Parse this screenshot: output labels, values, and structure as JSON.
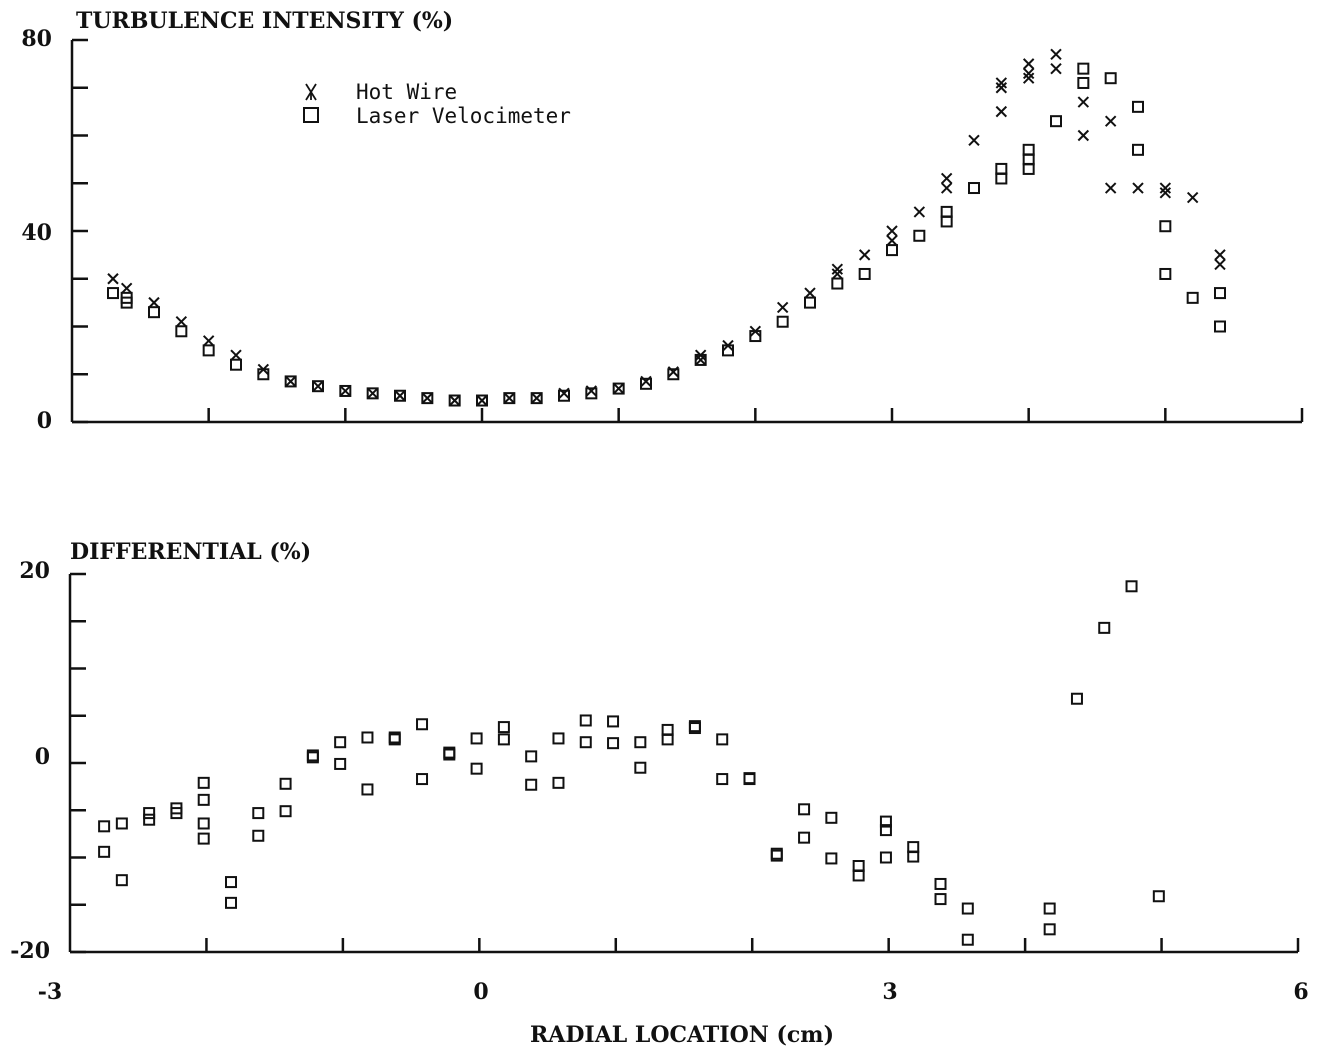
{
  "chart_data": [
    {
      "type": "scatter",
      "title": "TURBULENCE INTENSITY (%)",
      "xlim": [
        -3,
        6
      ],
      "ylim": [
        0,
        80
      ],
      "yticks": [
        "0",
        "40",
        "80"
      ],
      "legend": [
        {
          "symbol": "X",
          "label": "Hot Wire"
        },
        {
          "symbol": "□",
          "label": "Laser Velocimeter"
        }
      ],
      "legend_position": "top-left",
      "series": [
        {
          "name": "Hot Wire",
          "marker": "x",
          "x": [
            -2.7,
            -2.6,
            -2.4,
            -2.2,
            -2.0,
            -1.8,
            -1.6,
            -1.4,
            -1.2,
            -1.0,
            -0.8,
            -0.6,
            -0.4,
            -0.2,
            0.0,
            0.2,
            0.4,
            0.6,
            0.8,
            1.0,
            1.2,
            1.4,
            1.6,
            1.6,
            1.8,
            2.0,
            2.2,
            2.4,
            2.6,
            2.6,
            2.8,
            3.0,
            3.0,
            3.2,
            3.4,
            3.4,
            3.6,
            3.8,
            3.8,
            3.8,
            4.0,
            4.0,
            4.0,
            4.2,
            4.2,
            4.4,
            4.4,
            4.6,
            4.6,
            4.8,
            5.0,
            5.0,
            5.2,
            5.4,
            5.4
          ],
          "y": [
            30,
            28,
            25,
            21,
            17,
            14,
            11,
            8.5,
            7.5,
            6.5,
            6,
            5.5,
            5,
            4.5,
            4.5,
            5,
            5,
            6,
            6.5,
            7,
            8.5,
            10.5,
            13,
            14,
            16,
            19,
            24,
            27,
            31,
            32,
            35,
            38,
            40,
            44,
            49,
            51,
            59,
            65,
            70,
            71,
            72,
            73,
            75,
            74,
            77,
            60,
            67,
            63,
            49,
            49,
            48,
            49,
            47,
            33,
            35
          ]
        },
        {
          "name": "Laser Velocimeter",
          "marker": "square",
          "x": [
            -2.7,
            -2.6,
            -2.6,
            -2.4,
            -2.2,
            -2.0,
            -1.8,
            -1.6,
            -1.4,
            -1.2,
            -1.0,
            -0.8,
            -0.6,
            -0.4,
            -0.2,
            0.0,
            0.2,
            0.4,
            0.6,
            0.8,
            1.0,
            1.2,
            1.4,
            1.6,
            1.8,
            2.0,
            2.2,
            2.4,
            2.6,
            2.8,
            3.0,
            3.2,
            3.4,
            3.4,
            3.6,
            3.8,
            3.8,
            4.0,
            4.0,
            4.0,
            4.2,
            4.4,
            4.4,
            4.6,
            4.8,
            4.8,
            5.0,
            5.0,
            5.2,
            5.4,
            5.4
          ],
          "y": [
            27,
            25,
            26,
            23,
            19,
            15,
            12,
            10,
            8.5,
            7.5,
            6.5,
            6,
            5.5,
            5,
            4.5,
            4.5,
            5,
            5,
            5.5,
            6,
            7,
            8,
            10,
            13,
            15,
            18,
            21,
            25,
            29,
            31,
            36,
            39,
            42,
            44,
            49,
            51,
            53,
            53,
            55,
            57,
            63,
            71,
            74,
            72,
            66,
            57,
            41,
            31,
            26,
            27,
            20
          ]
        }
      ]
    },
    {
      "type": "scatter",
      "title": "DIFFERENTIAL (%)",
      "xlabel": "RADIAL LOCATION (cm)",
      "xlim": [
        -3,
        6
      ],
      "ylim": [
        -20,
        20
      ],
      "xticks": [
        "-3",
        "0",
        "3",
        "6"
      ],
      "yticks": [
        "-20",
        "0",
        "20"
      ],
      "series": [
        {
          "marker": "square",
          "x": [
            -2.75,
            -2.75,
            -2.62,
            -2.62,
            -2.42,
            -2.42,
            -2.22,
            -2.22,
            -2.02,
            -2.02,
            -2.02,
            -2.02,
            -1.82,
            -1.82,
            -1.62,
            -1.62,
            -1.42,
            -1.42,
            -1.22,
            -1.22,
            -1.02,
            -1.02,
            -0.82,
            -0.82,
            -0.62,
            -0.62,
            -0.42,
            -0.42,
            -0.22,
            -0.22,
            -0.02,
            -0.02,
            0.18,
            0.18,
            0.38,
            0.38,
            0.58,
            0.58,
            0.78,
            0.78,
            0.98,
            0.98,
            1.18,
            1.18,
            1.38,
            1.38,
            1.58,
            1.58,
            1.78,
            1.78,
            1.98,
            1.98,
            2.18,
            2.18,
            2.38,
            2.38,
            2.58,
            2.58,
            2.78,
            2.78,
            2.98,
            2.98,
            2.98,
            3.18,
            3.18,
            3.38,
            3.38,
            3.58,
            3.58,
            4.18,
            4.18,
            4.38,
            4.58,
            4.78,
            4.98
          ],
          "y": [
            -6.7,
            -9.4,
            -6.4,
            -12.4,
            -5.3,
            -6,
            -4.8,
            -5.3,
            -2.1,
            -3.9,
            -6.4,
            -8,
            -12.6,
            -14.8,
            -5.3,
            -7.7,
            -2.2,
            -5.1,
            0.8,
            0.6,
            2.2,
            -0.1,
            2.7,
            -2.8,
            2.7,
            2.5,
            4.1,
            -1.7,
            1.1,
            0.9,
            2.6,
            -0.6,
            3.8,
            2.5,
            0.7,
            -2.3,
            2.6,
            -2.1,
            4.5,
            2.2,
            4.4,
            2.1,
            2.2,
            -0.5,
            3.5,
            2.5,
            3.9,
            3.7,
            2.5,
            -1.7,
            -1.6,
            -1.7,
            -9.6,
            -9.8,
            -4.9,
            -7.9,
            -5.8,
            -10.1,
            -10.9,
            -11.9,
            -6.2,
            -7.1,
            -10,
            -8.9,
            -9.9,
            -12.8,
            -14.4,
            -15.4,
            -18.7,
            -15.4,
            -17.6,
            6.8,
            14.3,
            18.7,
            -14.1
          ]
        }
      ]
    }
  ]
}
